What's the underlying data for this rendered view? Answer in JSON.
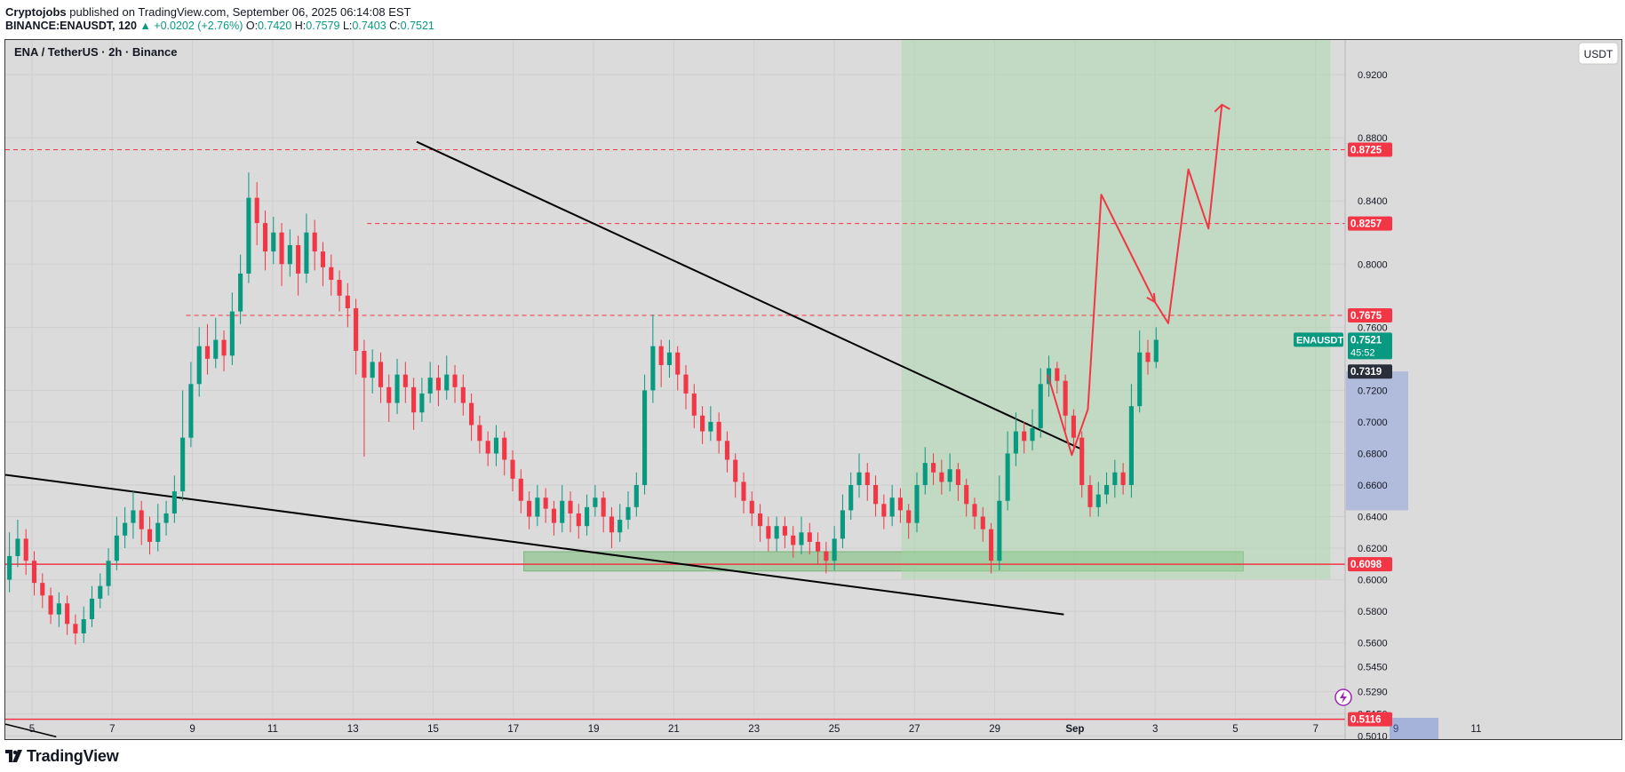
{
  "header": {
    "author": "Cryptojobs",
    "published_text": "published on TradingView.com, September 06, 2025 06:14:08 EST",
    "symbol_line": "BINANCE:ENAUSDT, 120",
    "change": "▲ +0.0202 (+2.76%)",
    "o_label": "O:",
    "o_value": "0.7420",
    "h_label": "H:",
    "h_value": "0.7579",
    "l_label": "L:",
    "l_value": "0.7403",
    "c_label": "C:",
    "c_value": "0.7521"
  },
  "chart_title": "ENA / TetherUS · 2h · Binance",
  "currency_button": "USDT",
  "footer": {
    "brand": "TradingView"
  },
  "colors": {
    "up": "#089981",
    "down": "#f23645",
    "bg": "#dbdbdb",
    "zone": "#a5d6a7",
    "price_label": "#089981"
  },
  "chart_data": {
    "type": "candlestick",
    "title": "ENA / TetherUS · 2h · Binance",
    "x_ticks": [
      "5",
      "7",
      "9",
      "11",
      "13",
      "15",
      "17",
      "19",
      "21",
      "23",
      "25",
      "27",
      "29",
      "Sep",
      "3",
      "5",
      "7",
      "9",
      "11"
    ],
    "y_ticks": [
      "0.9200",
      "0.8800",
      "0.8400",
      "0.8000",
      "0.7600",
      "0.7200",
      "0.7000",
      "0.6800",
      "0.6600",
      "0.6400",
      "0.6200",
      "0.6000",
      "0.5800",
      "0.5600",
      "0.5450",
      "0.5290",
      "0.5150",
      "0.5010"
    ],
    "ylim": [
      0.499,
      0.942
    ],
    "price_levels": [
      {
        "label": "0.8725",
        "value": 0.8725,
        "style": "dashed"
      },
      {
        "label": "0.8257",
        "value": 0.8257,
        "style": "dashed"
      },
      {
        "label": "0.7675",
        "value": 0.7675,
        "style": "dashed"
      },
      {
        "label": "0.6098",
        "value": 0.6098,
        "style": "solid"
      },
      {
        "label": "0.5116",
        "value": 0.5116,
        "style": "solid"
      }
    ],
    "current_price": {
      "symbol": "ENAUSDT",
      "price": "0.7521",
      "countdown": "45:52"
    },
    "low_marker": "0.7319",
    "candles": [
      [
        0.6,
        0.615,
        0.63,
        0.592
      ],
      [
        0.615,
        0.626,
        0.638,
        0.608
      ],
      [
        0.626,
        0.612,
        0.632,
        0.603
      ],
      [
        0.612,
        0.598,
        0.618,
        0.59
      ],
      [
        0.598,
        0.59,
        0.604,
        0.582
      ],
      [
        0.59,
        0.578,
        0.595,
        0.572
      ],
      [
        0.578,
        0.585,
        0.592,
        0.57
      ],
      [
        0.585,
        0.572,
        0.59,
        0.565
      ],
      [
        0.572,
        0.566,
        0.578,
        0.559
      ],
      [
        0.566,
        0.575,
        0.583,
        0.56
      ],
      [
        0.575,
        0.588,
        0.596,
        0.57
      ],
      [
        0.588,
        0.596,
        0.604,
        0.582
      ],
      [
        0.596,
        0.612,
        0.62,
        0.59
      ],
      [
        0.612,
        0.628,
        0.64,
        0.606
      ],
      [
        0.628,
        0.636,
        0.646,
        0.62
      ],
      [
        0.636,
        0.644,
        0.656,
        0.626
      ],
      [
        0.644,
        0.632,
        0.65,
        0.622
      ],
      [
        0.632,
        0.624,
        0.64,
        0.616
      ],
      [
        0.624,
        0.636,
        0.648,
        0.618
      ],
      [
        0.636,
        0.642,
        0.65,
        0.628
      ],
      [
        0.642,
        0.656,
        0.666,
        0.636
      ],
      [
        0.656,
        0.69,
        0.72,
        0.65
      ],
      [
        0.69,
        0.724,
        0.738,
        0.684
      ],
      [
        0.724,
        0.748,
        0.76,
        0.716
      ],
      [
        0.748,
        0.74,
        0.762,
        0.73
      ],
      [
        0.74,
        0.752,
        0.766,
        0.734
      ],
      [
        0.752,
        0.742,
        0.758,
        0.732
      ],
      [
        0.742,
        0.77,
        0.782,
        0.736
      ],
      [
        0.77,
        0.794,
        0.806,
        0.762
      ],
      [
        0.794,
        0.842,
        0.858,
        0.788
      ],
      [
        0.842,
        0.826,
        0.852,
        0.812
      ],
      [
        0.826,
        0.808,
        0.834,
        0.796
      ],
      [
        0.808,
        0.82,
        0.83,
        0.8
      ],
      [
        0.82,
        0.8,
        0.826,
        0.786
      ],
      [
        0.8,
        0.812,
        0.822,
        0.792
      ],
      [
        0.812,
        0.794,
        0.818,
        0.78
      ],
      [
        0.794,
        0.82,
        0.832,
        0.788
      ],
      [
        0.82,
        0.808,
        0.828,
        0.796
      ],
      [
        0.808,
        0.798,
        0.814,
        0.786
      ],
      [
        0.798,
        0.79,
        0.806,
        0.78
      ],
      [
        0.79,
        0.78,
        0.796,
        0.77
      ],
      [
        0.78,
        0.772,
        0.788,
        0.76
      ],
      [
        0.772,
        0.745,
        0.778,
        0.73
      ],
      [
        0.745,
        0.728,
        0.752,
        0.678
      ],
      [
        0.728,
        0.738,
        0.746,
        0.718
      ],
      [
        0.738,
        0.722,
        0.744,
        0.712
      ],
      [
        0.722,
        0.712,
        0.73,
        0.7
      ],
      [
        0.712,
        0.73,
        0.74,
        0.705
      ],
      [
        0.73,
        0.722,
        0.738,
        0.712
      ],
      [
        0.722,
        0.706,
        0.728,
        0.695
      ],
      [
        0.706,
        0.718,
        0.728,
        0.7
      ],
      [
        0.718,
        0.728,
        0.738,
        0.712
      ],
      [
        0.728,
        0.72,
        0.736,
        0.71
      ],
      [
        0.72,
        0.73,
        0.742,
        0.714
      ],
      [
        0.73,
        0.722,
        0.736,
        0.712
      ],
      [
        0.722,
        0.712,
        0.73,
        0.704
      ],
      [
        0.712,
        0.698,
        0.718,
        0.688
      ],
      [
        0.698,
        0.688,
        0.704,
        0.68
      ],
      [
        0.688,
        0.68,
        0.694,
        0.672
      ],
      [
        0.68,
        0.69,
        0.698,
        0.672
      ],
      [
        0.69,
        0.676,
        0.694,
        0.666
      ],
      [
        0.676,
        0.664,
        0.682,
        0.656
      ],
      [
        0.664,
        0.65,
        0.67,
        0.642
      ],
      [
        0.65,
        0.64,
        0.656,
        0.632
      ],
      [
        0.64,
        0.652,
        0.66,
        0.634
      ],
      [
        0.652,
        0.645,
        0.658,
        0.636
      ],
      [
        0.645,
        0.636,
        0.65,
        0.628
      ],
      [
        0.636,
        0.65,
        0.66,
        0.63
      ],
      [
        0.65,
        0.642,
        0.656,
        0.63
      ],
      [
        0.642,
        0.634,
        0.648,
        0.626
      ],
      [
        0.634,
        0.646,
        0.654,
        0.628
      ],
      [
        0.646,
        0.652,
        0.66,
        0.64
      ],
      [
        0.652,
        0.64,
        0.656,
        0.63
      ],
      [
        0.64,
        0.63,
        0.646,
        0.62
      ],
      [
        0.63,
        0.638,
        0.648,
        0.624
      ],
      [
        0.638,
        0.646,
        0.656,
        0.632
      ],
      [
        0.646,
        0.66,
        0.668,
        0.64
      ],
      [
        0.66,
        0.72,
        0.73,
        0.654
      ],
      [
        0.72,
        0.748,
        0.768,
        0.712
      ],
      [
        0.748,
        0.736,
        0.752,
        0.722
      ],
      [
        0.736,
        0.744,
        0.752,
        0.728
      ],
      [
        0.744,
        0.73,
        0.748,
        0.72
      ],
      [
        0.73,
        0.718,
        0.736,
        0.708
      ],
      [
        0.718,
        0.704,
        0.724,
        0.696
      ],
      [
        0.704,
        0.694,
        0.71,
        0.686
      ],
      [
        0.694,
        0.7,
        0.71,
        0.688
      ],
      [
        0.7,
        0.688,
        0.706,
        0.68
      ],
      [
        0.688,
        0.676,
        0.694,
        0.668
      ],
      [
        0.676,
        0.662,
        0.68,
        0.652
      ],
      [
        0.662,
        0.65,
        0.668,
        0.642
      ],
      [
        0.65,
        0.642,
        0.656,
        0.634
      ],
      [
        0.642,
        0.634,
        0.648,
        0.624
      ],
      [
        0.634,
        0.626,
        0.64,
        0.618
      ],
      [
        0.626,
        0.634,
        0.64,
        0.618
      ],
      [
        0.634,
        0.628,
        0.64,
        0.62
      ],
      [
        0.628,
        0.622,
        0.634,
        0.614
      ],
      [
        0.622,
        0.63,
        0.64,
        0.616
      ],
      [
        0.63,
        0.624,
        0.636,
        0.616
      ],
      [
        0.624,
        0.618,
        0.63,
        0.61
      ],
      [
        0.618,
        0.612,
        0.624,
        0.604
      ],
      [
        0.612,
        0.626,
        0.634,
        0.606
      ],
      [
        0.626,
        0.644,
        0.654,
        0.62
      ],
      [
        0.644,
        0.66,
        0.668,
        0.638
      ],
      [
        0.66,
        0.668,
        0.68,
        0.652
      ],
      [
        0.668,
        0.66,
        0.674,
        0.65
      ],
      [
        0.66,
        0.648,
        0.666,
        0.64
      ],
      [
        0.648,
        0.64,
        0.654,
        0.632
      ],
      [
        0.64,
        0.652,
        0.66,
        0.634
      ],
      [
        0.652,
        0.644,
        0.658,
        0.636
      ],
      [
        0.644,
        0.636,
        0.648,
        0.626
      ],
      [
        0.636,
        0.66,
        0.668,
        0.63
      ],
      [
        0.66,
        0.674,
        0.684,
        0.654
      ],
      [
        0.674,
        0.668,
        0.68,
        0.66
      ],
      [
        0.668,
        0.662,
        0.676,
        0.654
      ],
      [
        0.662,
        0.67,
        0.68,
        0.656
      ],
      [
        0.67,
        0.66,
        0.674,
        0.65
      ],
      [
        0.66,
        0.648,
        0.664,
        0.64
      ],
      [
        0.648,
        0.64,
        0.652,
        0.632
      ],
      [
        0.64,
        0.632,
        0.646,
        0.624
      ],
      [
        0.632,
        0.612,
        0.636,
        0.604
      ],
      [
        0.612,
        0.65,
        0.666,
        0.606
      ],
      [
        0.65,
        0.68,
        0.694,
        0.644
      ],
      [
        0.68,
        0.694,
        0.706,
        0.672
      ],
      [
        0.694,
        0.688,
        0.7,
        0.68
      ],
      [
        0.688,
        0.696,
        0.708,
        0.682
      ],
      [
        0.696,
        0.724,
        0.734,
        0.69
      ],
      [
        0.724,
        0.734,
        0.742,
        0.716
      ],
      [
        0.734,
        0.726,
        0.738,
        0.718
      ],
      [
        0.726,
        0.704,
        0.73,
        0.694
      ],
      [
        0.704,
        0.69,
        0.708,
        0.682
      ],
      [
        0.69,
        0.66,
        0.694,
        0.652
      ],
      [
        0.66,
        0.646,
        0.666,
        0.64
      ],
      [
        0.646,
        0.654,
        0.662,
        0.64
      ],
      [
        0.654,
        0.66,
        0.668,
        0.648
      ],
      [
        0.66,
        0.668,
        0.676,
        0.652
      ],
      [
        0.668,
        0.66,
        0.674,
        0.654
      ],
      [
        0.66,
        0.71,
        0.724,
        0.652
      ],
      [
        0.71,
        0.744,
        0.758,
        0.706
      ],
      [
        0.744,
        0.738,
        0.752,
        0.73
      ],
      [
        0.738,
        0.752,
        0.76,
        0.734
      ]
    ],
    "annotations": [
      {
        "type": "trendline",
        "name": "upper-trendline",
        "from": [
          0.307,
          0.8775
        ],
        "to": [
          0.805,
          0.682
        ]
      },
      {
        "type": "trendline",
        "name": "lower-trendline",
        "from": [
          0.0,
          0.6665
        ],
        "to": [
          0.79,
          0.578
        ]
      },
      {
        "type": "zone",
        "name": "support-zone",
        "from": [
          0.387,
          0.6178
        ],
        "to": [
          0.924,
          0.6055
        ]
      },
      {
        "type": "zone",
        "name": "long-position-zone",
        "from": [
          0.669,
          0.942
        ],
        "to": [
          0.989,
          0.6005
        ]
      }
    ],
    "projection_path": [
      [
        0.778,
        0.73
      ],
      [
        0.796,
        0.679
      ],
      [
        0.808,
        0.708
      ],
      [
        0.818,
        0.844
      ],
      [
        0.858,
        0.776
      ],
      [
        0.868,
        0.7625
      ],
      [
        0.883,
        0.86
      ],
      [
        0.898,
        0.8225
      ],
      [
        0.908,
        0.901
      ]
    ]
  }
}
